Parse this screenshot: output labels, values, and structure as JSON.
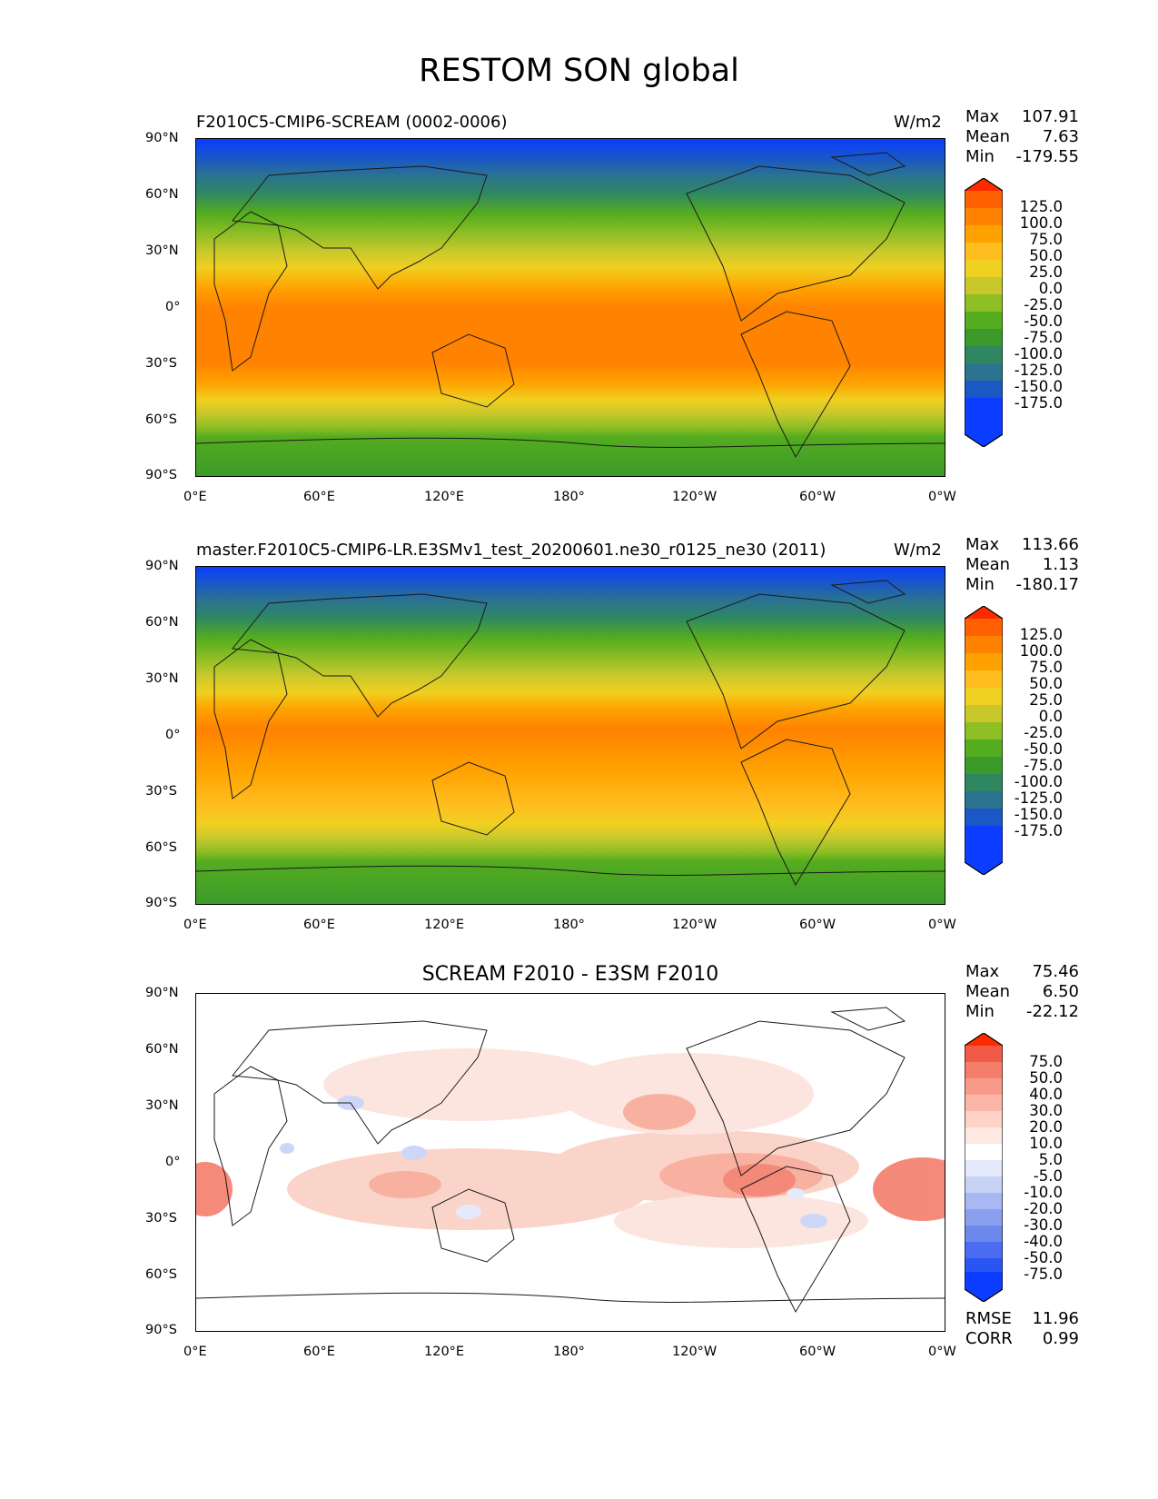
{
  "figure_title": "RESTOM SON global",
  "map_axes": {
    "lat_ticks": [
      "90°N",
      "60°N",
      "30°N",
      "0°",
      "30°S",
      "60°S",
      "90°S"
    ],
    "lon_ticks": [
      "0°E",
      "60°E",
      "120°E",
      "180°",
      "120°W",
      "60°W",
      "0°W"
    ]
  },
  "panels": [
    {
      "title": "F2010C5-CMIP6-SCREAM (0002-0006)",
      "units": "W/m2",
      "stats": [
        {
          "label": "Max",
          "value": "107.91"
        },
        {
          "label": "Mean",
          "value": "7.63"
        },
        {
          "label": "Min",
          "value": "-179.55"
        }
      ],
      "colorbar_labels": [
        "125.0",
        "100.0",
        "75.0",
        "50.0",
        "25.0",
        "0.0",
        "-25.0",
        "-50.0",
        "-75.0",
        "-100.0",
        "-125.0",
        "-150.0",
        "-175.0"
      ],
      "colorbar_colors": [
        "#ff2a00",
        "#ff6000",
        "#ff8200",
        "#ffa200",
        "#ffbd1f",
        "#f0d020",
        "#c8c82c",
        "#8fbe25",
        "#54ac1f",
        "#3b9a2a",
        "#2f8762",
        "#2b7390",
        "#1a58c4",
        "#0a3dff"
      ]
    },
    {
      "title": "master.F2010C5-CMIP6-LR.E3SMv1_test_20200601.ne30_r0125_ne30 (2011)",
      "units": "W/m2",
      "stats": [
        {
          "label": "Max",
          "value": "113.66"
        },
        {
          "label": "Mean",
          "value": "1.13"
        },
        {
          "label": "Min",
          "value": "-180.17"
        }
      ],
      "colorbar_labels": [
        "125.0",
        "100.0",
        "75.0",
        "50.0",
        "25.0",
        "0.0",
        "-25.0",
        "-50.0",
        "-75.0",
        "-100.0",
        "-125.0",
        "-150.0",
        "-175.0"
      ],
      "colorbar_colors": [
        "#ff2a00",
        "#ff6000",
        "#ff8200",
        "#ffa200",
        "#ffbd1f",
        "#f0d020",
        "#c8c82c",
        "#8fbe25",
        "#54ac1f",
        "#3b9a2a",
        "#2f8762",
        "#2b7390",
        "#1a58c4",
        "#0a3dff"
      ]
    },
    {
      "title": "SCREAM F2010 - E3SM F2010",
      "units": "",
      "stats": [
        {
          "label": "Max",
          "value": "75.46"
        },
        {
          "label": "Mean",
          "value": "6.50"
        },
        {
          "label": "Min",
          "value": "-22.12"
        }
      ],
      "extra_stats": [
        {
          "label": "RMSE",
          "value": "11.96"
        },
        {
          "label": "CORR",
          "value": "0.99"
        }
      ],
      "colorbar_labels": [
        "75.0",
        "50.0",
        "40.0",
        "30.0",
        "20.0",
        "10.0",
        "5.0",
        "-5.0",
        "-10.0",
        "-20.0",
        "-30.0",
        "-40.0",
        "-50.0",
        "-75.0"
      ],
      "colorbar_colors": [
        "#ff2a00",
        "#f25a48",
        "#f57d6b",
        "#f89a8a",
        "#fbb6a8",
        "#fdd2c7",
        "#ffe8e2",
        "#ffffff",
        "#e3e8fb",
        "#c7d2f7",
        "#a8b8f2",
        "#8aa0ee",
        "#6c88ea",
        "#4a6cf0",
        "#0a3dff"
      ]
    }
  ]
}
